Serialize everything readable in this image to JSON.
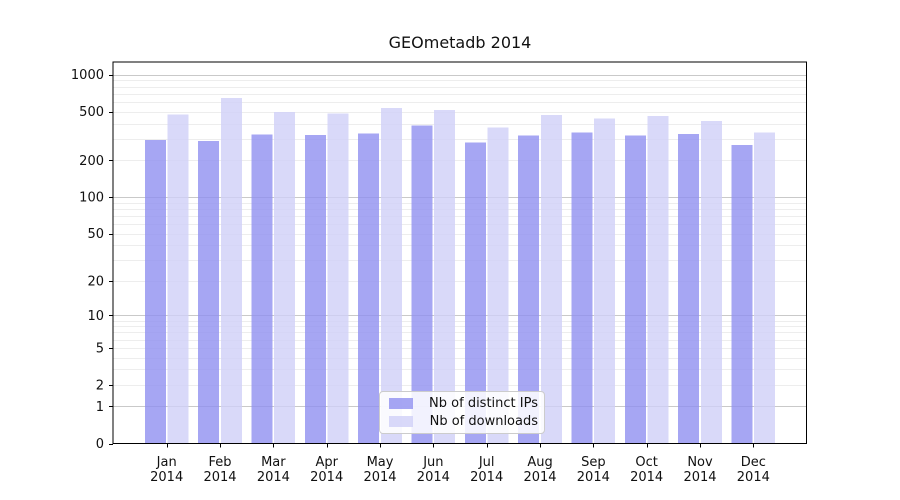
{
  "chart_data": {
    "type": "bar",
    "title": "GEOmetadb 2014",
    "categories": [
      "Jan",
      "Feb",
      "Mar",
      "Apr",
      "May",
      "Jun",
      "Jul",
      "Aug",
      "Sep",
      "Oct",
      "Nov",
      "Dec"
    ],
    "category_year": "2014",
    "series": [
      {
        "name": "Nb of distinct IPs",
        "color": "#9090f0",
        "opacity": 0.8,
        "values": [
          294,
          288,
          327,
          322,
          331,
          386,
          281,
          318,
          337,
          318,
          329,
          267
        ]
      },
      {
        "name": "Nb of downloads",
        "color": "#d0d0f8",
        "opacity": 0.8,
        "values": [
          475,
          643,
          497,
          485,
          536,
          516,
          370,
          470,
          441,
          461,
          420,
          337
        ]
      }
    ],
    "xlabel": "",
    "ylabel": "",
    "y_ticks": [
      0,
      1,
      2,
      5,
      10,
      20,
      50,
      100,
      200,
      500,
      1000
    ],
    "y_scale": "log1p",
    "ylim": [
      0,
      1270
    ],
    "grid": "horizontal",
    "grid_minor_color": "#ededed",
    "grid_major_color": "#c9c9c9",
    "axis_color": "#000000",
    "legend_position": "lower center"
  }
}
